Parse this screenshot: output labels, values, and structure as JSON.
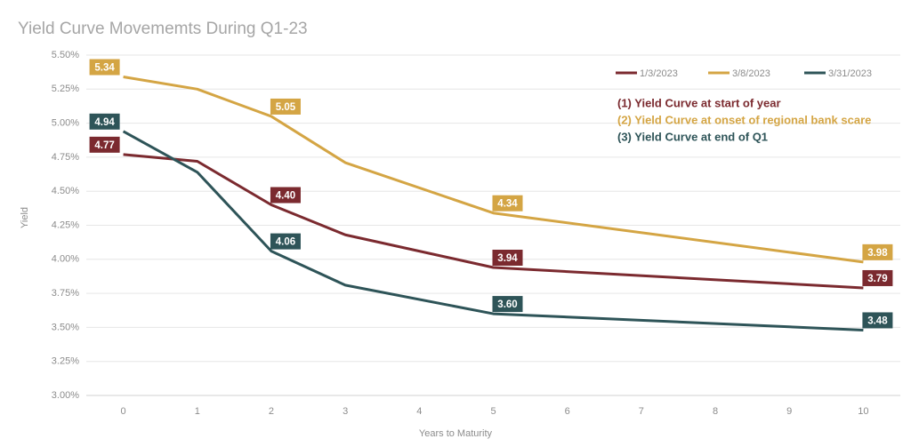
{
  "chart_data": {
    "type": "line",
    "title": "Yield Curve Movememts During Q1-23",
    "x_label": "Years to Maturity",
    "y_label": "Yield",
    "x": [
      0,
      1,
      2,
      3,
      5,
      10
    ],
    "xlim": [
      -0.5,
      10.5
    ],
    "xticks": [
      0,
      1,
      2,
      3,
      4,
      5,
      6,
      7,
      8,
      9,
      10
    ],
    "ylim": [
      3,
      5.5
    ],
    "yticks": [
      {
        "value": 3,
        "label": "3.00%"
      },
      {
        "value": 3.25,
        "label": "3.25%"
      },
      {
        "value": 3.5,
        "label": "3.50%"
      },
      {
        "value": 3.75,
        "label": "3.75%"
      },
      {
        "value": 4,
        "label": "4.00%"
      },
      {
        "value": 4.25,
        "label": "4.25%"
      },
      {
        "value": 4.5,
        "label": "4.50%"
      },
      {
        "value": 4.75,
        "label": "4.75%"
      },
      {
        "value": 5,
        "label": "5.00%"
      },
      {
        "value": 5.25,
        "label": "5.25%"
      },
      {
        "value": 5.5,
        "label": "5.50%"
      }
    ],
    "grid": true,
    "legend": "top-right",
    "series": [
      {
        "name": "1/3/2023",
        "color": "#7b2a2f",
        "values": [
          4.77,
          4.72,
          4.4,
          4.18,
          3.94,
          3.79
        ],
        "value_labels": [
          "4.77",
          null,
          "4.40",
          null,
          "3.94",
          "3.79"
        ]
      },
      {
        "name": "3/8/2023",
        "color": "#d4a544",
        "values": [
          5.34,
          5.25,
          5.05,
          4.71,
          4.34,
          3.98
        ],
        "value_labels": [
          "5.34",
          null,
          "5.05",
          null,
          "4.34",
          "3.98"
        ]
      },
      {
        "name": "3/31/2023",
        "color": "#2e5458",
        "values": [
          4.94,
          4.64,
          4.06,
          3.81,
          3.6,
          3.48
        ],
        "value_labels": [
          "4.94",
          null,
          "4.06",
          null,
          "3.60",
          "3.48"
        ]
      }
    ],
    "annotations": [
      {
        "text": "(1) Yield Curve at start of year",
        "color": "#7b2a2f"
      },
      {
        "text": "(2) Yield Curve at onset of regional bank scare",
        "color": "#d4a544"
      },
      {
        "text": "(3) Yield Curve at end of Q1",
        "color": "#2e5458"
      }
    ]
  }
}
